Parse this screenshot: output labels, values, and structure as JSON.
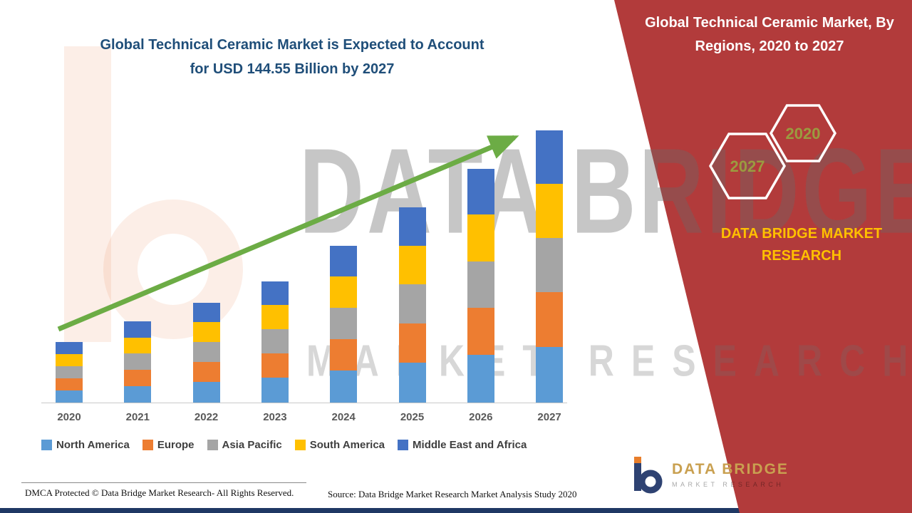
{
  "page": {
    "chart_title_line1": "Global Technical Ceramic Market is Expected to Account",
    "chart_title_line2": "for USD 144.55 Billion by 2027",
    "panel_title_line1": "Global Technical Ceramic Market, By",
    "panel_title_line2": "Regions, 2020 to 2027",
    "hex_year_left": "2027",
    "hex_year_right": "2020",
    "brand_line1": "DATA BRIDGE MARKET",
    "brand_line2": "RESEARCH",
    "logo_title": "DATA BRIDGE",
    "logo_subtitle": "MARKET RESEARCH",
    "watermark_line1": "DATA BRIDGE",
    "watermark_line2": "MARKET RESEARCH",
    "footer_left": "DMCA Protected © Data Bridge Market Research- All Rights Reserved.",
    "footer_source": "Source: Data Bridge Market Research Market Analysis Study 2020"
  },
  "colors": {
    "panel_red": "#B23B3B",
    "title_blue": "#1F4E79",
    "brand_yellow": "#FFC000",
    "hex_year_olive": "#9B9B3F",
    "arrow_green": "#6CAC45",
    "bottom_strip_navy": "#1F3864"
  },
  "chart_data": {
    "type": "bar",
    "stacked": true,
    "title": "Global Technical Ceramic Market is Expected to Account for USD 144.55 Billion by 2027",
    "unit": "USD Billion",
    "categories": [
      "2020",
      "2021",
      "2022",
      "2023",
      "2024",
      "2025",
      "2026",
      "2027"
    ],
    "series": [
      {
        "name": "North America",
        "color": "#5B9BD5",
        "values": [
          6.6,
          8.8,
          10.9,
          13.2,
          17.1,
          21.3,
          25.4,
          29.6
        ]
      },
      {
        "name": "Europe",
        "color": "#ED7D31",
        "values": [
          6.4,
          8.6,
          10.6,
          12.9,
          16.6,
          20.7,
          24.8,
          28.9
        ]
      },
      {
        "name": "Asia Pacific",
        "color": "#A5A5A5",
        "values": [
          6.4,
          8.6,
          10.6,
          12.9,
          16.6,
          20.7,
          24.8,
          28.9
        ]
      },
      {
        "name": "South America",
        "color": "#FFC000",
        "values": [
          6.4,
          8.6,
          10.6,
          12.9,
          16.6,
          20.7,
          24.8,
          28.9
        ]
      },
      {
        "name": "Middle East and Africa",
        "color": "#4472C4",
        "values": [
          6.3,
          8.4,
          10.3,
          12.5,
          16.2,
          20.2,
          24.2,
          28.2
        ]
      }
    ],
    "totals": [
      32.1,
      43.0,
      53.0,
      64.4,
      83.1,
      103.6,
      124.0,
      144.55
    ],
    "ylim": [
      0,
      150
    ],
    "grid": false,
    "legend_position": "bottom",
    "trend_arrow": true
  }
}
